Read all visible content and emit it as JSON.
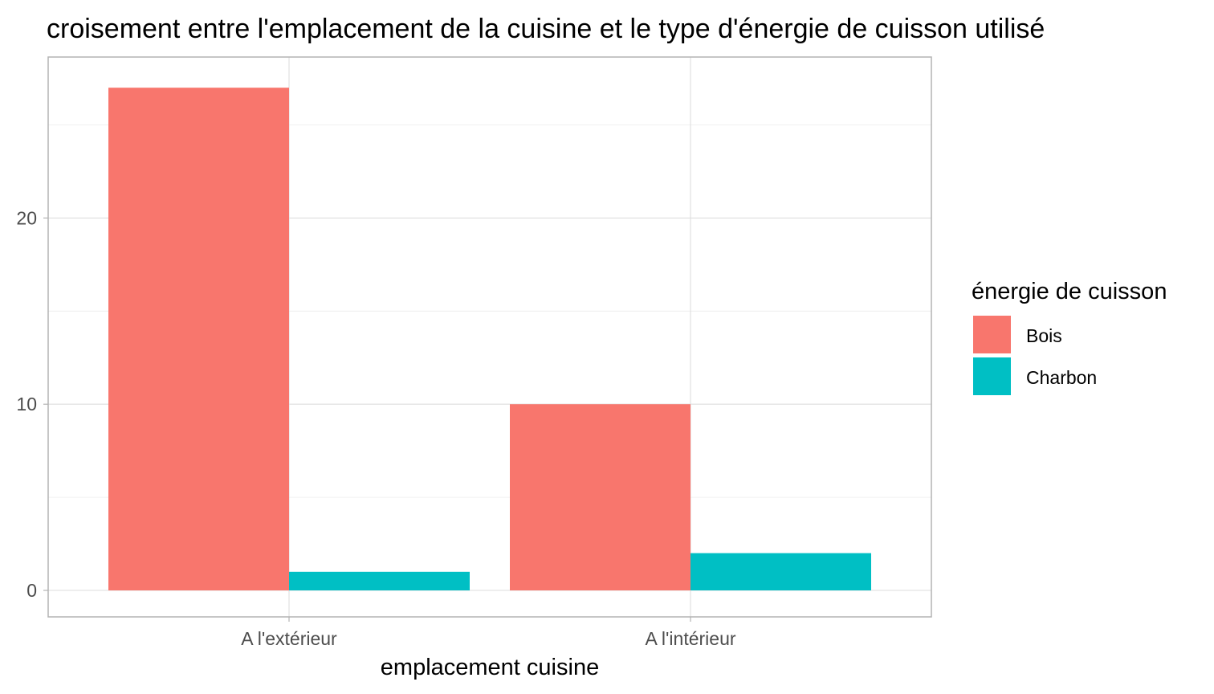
{
  "chart_data": {
    "type": "bar",
    "title": "croisement entre l'emplacement de la cuisine et le type d'énergie de cuisson utilisé",
    "xlabel": "emplacement cuisine",
    "ylabel": "",
    "categories": [
      "A l'extérieur",
      "A l'intérieur"
    ],
    "series": [
      {
        "name": "Bois",
        "values": [
          27,
          10
        ],
        "color": "#F8766D"
      },
      {
        "name": "Charbon",
        "values": [
          1,
          2
        ],
        "color": "#00BFC4"
      }
    ],
    "ylim": [
      0,
      28
    ],
    "yticks": [
      0,
      10,
      20
    ],
    "grid": true,
    "legend": {
      "title": "énergie de cuisson",
      "position": "right"
    }
  }
}
